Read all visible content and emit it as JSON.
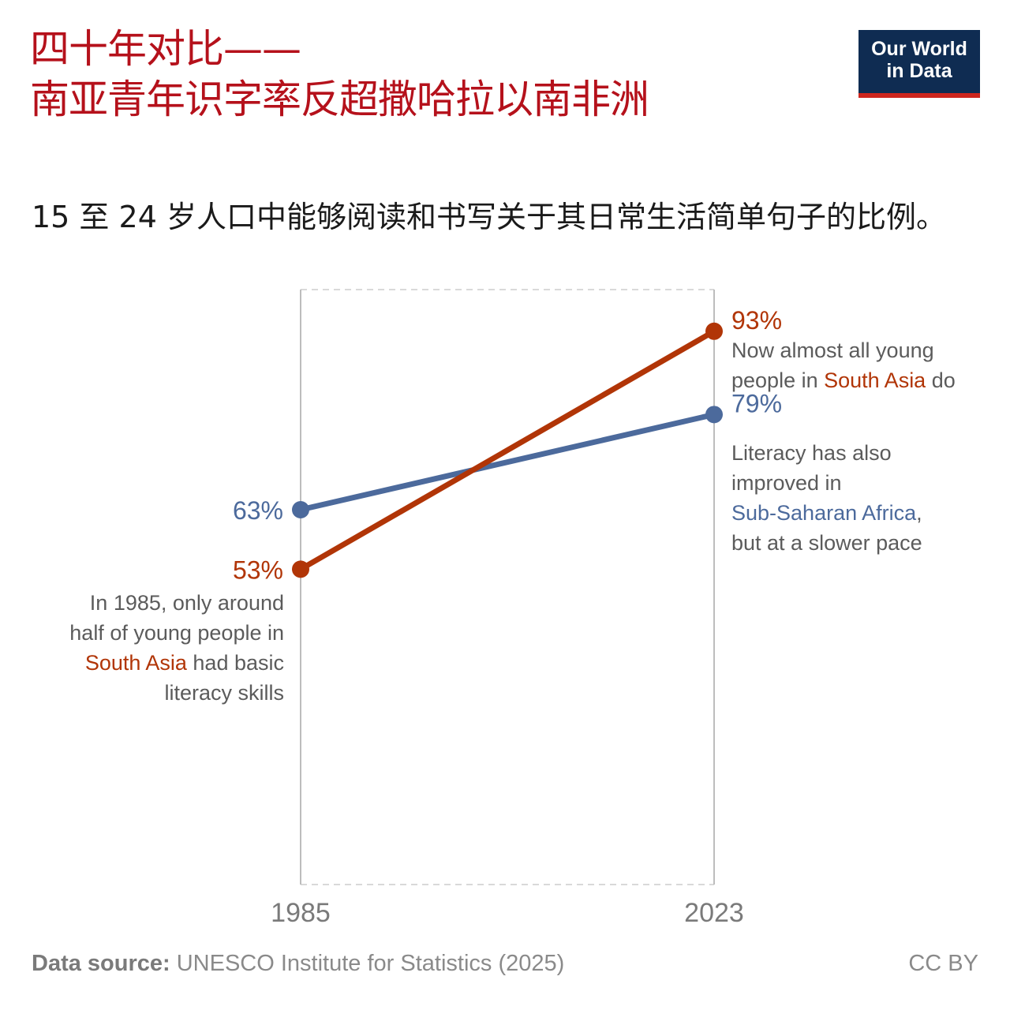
{
  "header": {
    "title_line1": "四十年对比——",
    "title_line2": "南亚青年识字率反超撒哈拉以南非洲",
    "subtitle": "15 至 24 岁人口中能够阅读和书写关于其日常生活简单句子的比例。"
  },
  "logo": {
    "line1": "Our World",
    "line2": "in Data",
    "background_color": "#0f2c52",
    "bar_color": "#ce261e"
  },
  "chart_data": {
    "type": "line",
    "title": "南亚青年识字率反超撒哈拉以南非洲",
    "x": [
      "1985",
      "2023"
    ],
    "ylabel": "15 至 24 岁人口中能够阅读和书写关于其日常生活简单句子的比例。",
    "ylim": [
      0,
      100
    ],
    "unit": "%",
    "series": [
      {
        "name": "Sub-Saharan Africa",
        "color": "#4c6a9c",
        "values": [
          63,
          79
        ],
        "labels": [
          "63%",
          "79%"
        ]
      },
      {
        "name": "South Asia",
        "color": "#b13507",
        "values": [
          53,
          93
        ],
        "labels": [
          "53%",
          "93%"
        ]
      }
    ]
  },
  "annotations": {
    "south_asia_1985": {
      "l1": "In 1985, only around",
      "l2": "half of young people in",
      "region": "South Asia",
      "l3_rest": " had basic",
      "l4": "literacy skills"
    },
    "south_asia_2023": {
      "l1": "Now almost all young",
      "l2_pre": "people in ",
      "region": "South Asia",
      "l2_post": " do"
    },
    "ssa_2023": {
      "l1": "Literacy has also",
      "l2": "improved in",
      "region": "Sub-Saharan Africa",
      "l3_post": ",",
      "l4": "but at a slower pace"
    }
  },
  "footer": {
    "source_label": "Data source:",
    "source_text": " UNESCO Institute for Statistics (2025)",
    "license": "CC BY"
  }
}
